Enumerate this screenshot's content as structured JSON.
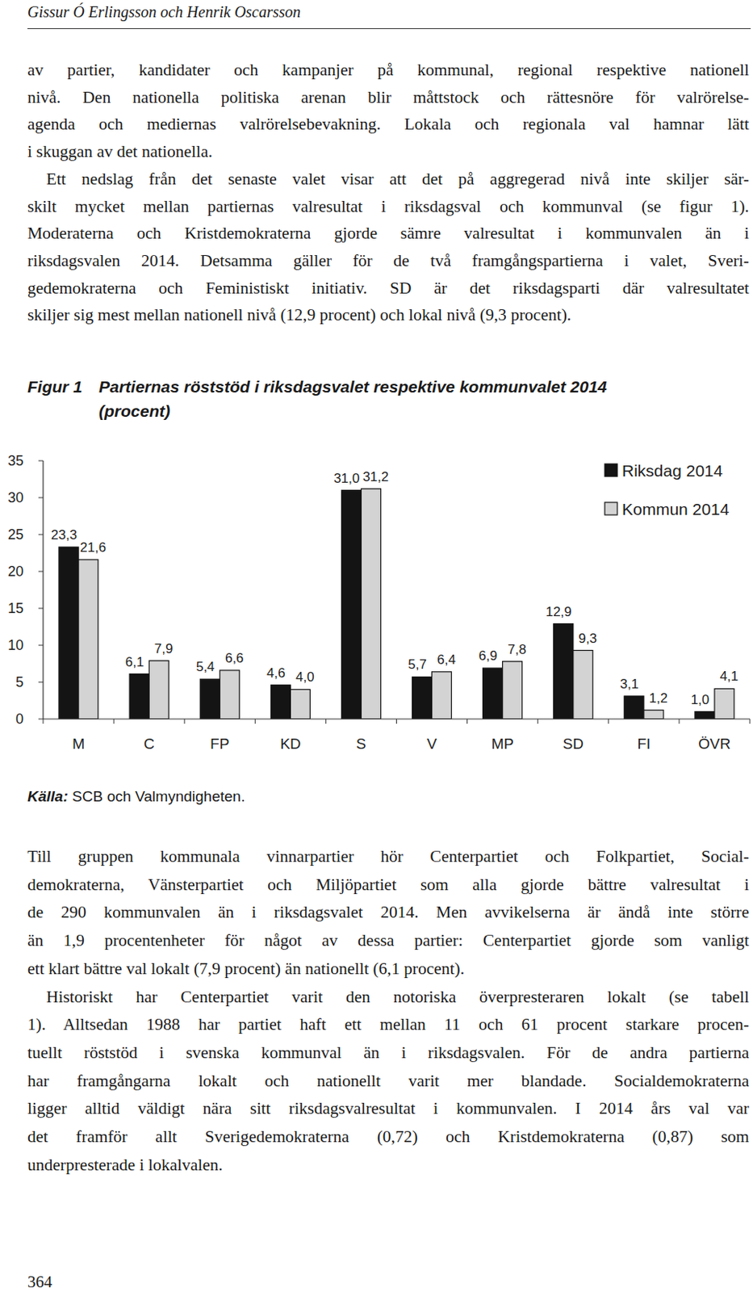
{
  "header": {
    "authors": "Gissur Ó Erlingsson och Henrik Oscarsson"
  },
  "body_top": [
    [
      "av partier, kandidater och kampanjer på kommunal, regional respektive nationell",
      "nivå. Den nationella politiska arenan blir måttstock och rättesnöre för valrörelse-",
      "agenda och mediernas valrörelsebevakning. Lokala och regionala val hamnar lätt",
      "i skuggan av det nationella."
    ],
    [
      "Ett nedslag från det senaste valet visar att det på aggregerad nivå inte skiljer sär-",
      "skilt mycket mellan partiernas valresultat i riksdagsval och kommunval (se figur 1).",
      "Moderaterna och Kristdemokraterna gjorde sämre valresultat i kommunvalen än i",
      "riksdagsvalen 2014. Detsamma gäller för de två framgångspartierna i valet, Sveri-",
      "gedemokraterna och Feministiskt initiativ. SD är det riksdagsparti där valresultatet",
      "skiljer sig mest mellan nationell nivå (12,9 procent) och lokal nivå (9,3 procent)."
    ]
  ],
  "figure": {
    "label": "Figur 1",
    "title_lines": [
      "Partiernas röststöd i riksdagsvalet respektive kommunvalet 2014",
      "(procent)"
    ],
    "source_label": "Källa:",
    "source": "SCB och Valmyndigheten."
  },
  "chart_data": {
    "type": "bar",
    "categories": [
      "M",
      "C",
      "FP",
      "KD",
      "S",
      "V",
      "MP",
      "SD",
      "FI",
      "ÖVR"
    ],
    "series": [
      {
        "name": "Riksdag 2014",
        "color": "#141414",
        "values": [
          23.3,
          6.1,
          5.4,
          4.6,
          31.0,
          5.7,
          6.9,
          12.9,
          3.1,
          1.0
        ],
        "value_labels": [
          "23,3",
          "6,1",
          "5,4",
          "4,6",
          "31,0",
          "5,7",
          "6,9",
          "12,9",
          "3,1",
          "1,0"
        ]
      },
      {
        "name": "Kommun 2014",
        "color": "#d3d3d3",
        "values": [
          21.6,
          7.9,
          6.6,
          4.0,
          31.2,
          6.4,
          7.8,
          9.3,
          1.2,
          4.1
        ],
        "value_labels": [
          "21,6",
          "7,9",
          "6,6",
          "4,0",
          "31,2",
          "6,4",
          "7,8",
          "9,3",
          "1,2",
          "4,1"
        ]
      }
    ],
    "ylim": [
      0,
      35
    ],
    "yticks": [
      0,
      5,
      10,
      15,
      20,
      25,
      30,
      35
    ],
    "grid": false,
    "legend": "top-right",
    "data_labels": true
  },
  "body_bottom": [
    [
      "Till gruppen kommunala vinnarpartier hör Centerpartiet och Folkpartiet, Social-",
      "demokraterna, Vänsterpartiet och Miljöpartiet som alla gjorde bättre valresultat i",
      "de 290 kommunvalen än i riksdagsvalet 2014. Men avvikelserna är ändå inte större",
      "än 1,9 procentenheter för något av dessa partier: Centerpartiet gjorde som vanligt",
      "ett klart bättre val lokalt (7,9 procent) än nationellt (6,1 procent)."
    ],
    [
      "Historiskt har Centerpartiet varit den notoriska överpresteraren lokalt (se tabell",
      "1). Alltsedan 1988 har partiet haft ett mellan 11 och 61 procent starkare procen-",
      "tuellt röststöd i svenska kommunval än i riksdagsvalen. För de andra partierna",
      "har framgångarna lokalt och nationellt varit mer blandade. Socialdemokraterna",
      "ligger alltid väldigt nära sitt riksdagsvalresultat i kommunvalen. I 2014 års val var",
      "det framför allt Sverigedemokraterna (0,72) och Kristdemokraterna (0,87) som",
      "underpresterade i lokalvalen."
    ]
  ],
  "page_number": "364"
}
